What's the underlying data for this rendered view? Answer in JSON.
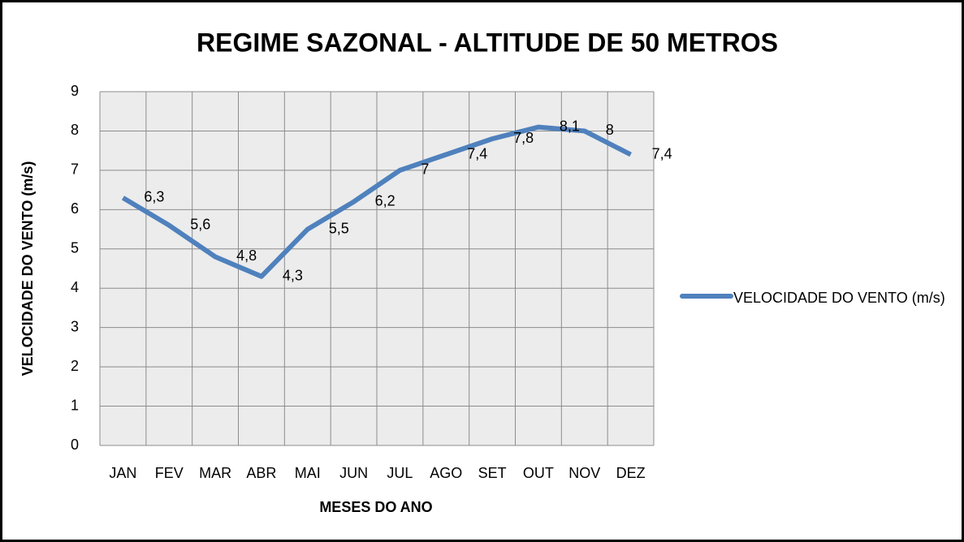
{
  "chart_data": {
    "type": "line",
    "title": "REGIME SAZONAL - ALTITUDE DE 50 METROS",
    "x_label": "MESES DO ANO",
    "y_label": "VELOCIDADE DO VENTO (m/s)",
    "categories": [
      "JAN",
      "FEV",
      "MAR",
      "ABR",
      "MAI",
      "JUN",
      "JUL",
      "AGO",
      "SET",
      "OUT",
      "NOV",
      "DEZ"
    ],
    "series": [
      {
        "name": "VELOCIDADE DO VENTO (m/s)",
        "color": "#4f81bd",
        "values": [
          6.3,
          5.6,
          4.8,
          4.3,
          5.5,
          6.2,
          7,
          7.4,
          7.8,
          8.1,
          8,
          7.4
        ],
        "value_labels": [
          "6,3",
          "5,6",
          "4,8",
          "4,3",
          "5,5",
          "6,2",
          "7",
          "7,4",
          "7,8",
          "8,1",
          "8",
          "7,4"
        ]
      }
    ],
    "ylim": [
      0,
      9
    ],
    "yticks": [
      0,
      1,
      2,
      3,
      4,
      5,
      6,
      7,
      8,
      9
    ],
    "grid": true,
    "legend": "right"
  }
}
